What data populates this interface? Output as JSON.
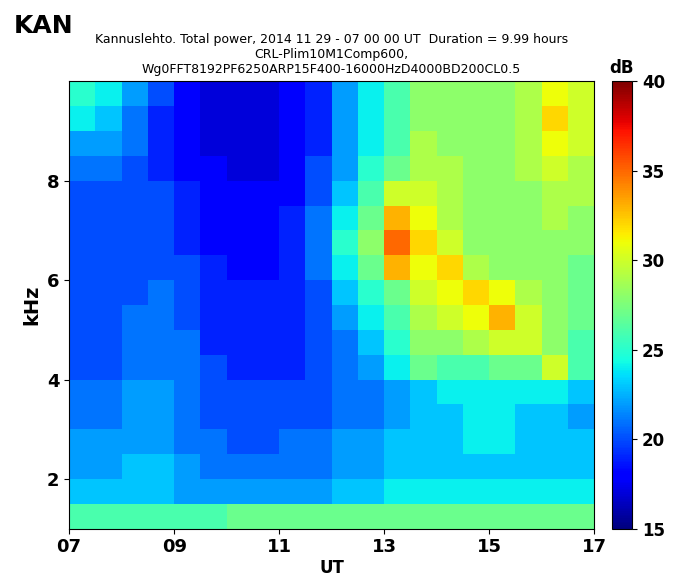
{
  "chart_data": {
    "type": "heatmap",
    "title": "Kannuslehto. Total power, 2014 11 29 - 07 00 00 UT  Duration = 9.99 hours\nCRL-Plim10M1Comp600,\nWg0FFT8192PF6250ARP15F400-16000HzD4000BD200CL0.5",
    "annotations": [
      {
        "text": "KAN"
      }
    ],
    "x_label": "UT",
    "y_label": "kHz",
    "xlim": [
      7,
      17
    ],
    "ylim": [
      1.0,
      10.0
    ],
    "xticks": [
      {
        "value": 7,
        "label": "07"
      },
      {
        "value": 9,
        "label": "09"
      },
      11,
      13,
      15,
      17
    ],
    "yticks": [
      2,
      4,
      6,
      8
    ],
    "x_edges": [
      7.0,
      7.5,
      8.0,
      8.5,
      9.0,
      9.5,
      10.0,
      10.5,
      11.0,
      11.5,
      12.0,
      12.5,
      13.0,
      13.5,
      14.0,
      14.5,
      15.0,
      15.5,
      16.0,
      16.5,
      17.0
    ],
    "y_edges": [
      1.0,
      1.5,
      2.0,
      2.5,
      3.0,
      3.5,
      4.0,
      4.5,
      5.0,
      5.5,
      6.0,
      6.5,
      7.0,
      7.5,
      8.0,
      8.5,
      9.0,
      9.5,
      10.0
    ],
    "cells": [
      [
        26,
        26,
        26,
        26,
        26,
        26,
        27,
        27,
        27,
        27,
        27,
        27,
        27,
        27,
        27,
        27,
        27,
        27,
        27,
        27
      ],
      [
        23,
        23,
        23,
        23,
        22,
        22,
        22,
        22,
        22,
        22,
        23,
        23,
        24,
        24,
        24,
        24,
        24,
        24,
        24,
        24
      ],
      [
        22,
        22,
        23,
        23,
        22,
        21,
        21,
        21,
        21,
        21,
        22,
        22,
        23,
        23,
        23,
        23,
        23,
        23,
        23,
        23
      ],
      [
        22,
        22,
        22,
        22,
        21,
        21,
        20,
        20,
        21,
        21,
        22,
        22,
        23,
        23,
        23,
        24,
        24,
        23,
        23,
        23
      ],
      [
        21,
        21,
        22,
        22,
        21,
        20,
        20,
        20,
        20,
        20,
        21,
        21,
        22,
        23,
        23,
        24,
        24,
        23,
        23,
        22
      ],
      [
        21,
        21,
        22,
        22,
        21,
        20,
        20,
        20,
        20,
        20,
        21,
        21,
        22,
        23,
        24,
        24,
        24,
        24,
        24,
        23
      ],
      [
        20,
        20,
        21,
        21,
        21,
        20,
        19,
        19,
        19,
        20,
        21,
        22,
        24,
        27,
        26,
        26,
        27,
        27,
        30,
        26
      ],
      [
        20,
        20,
        21,
        21,
        21,
        19,
        19,
        19,
        19,
        20,
        21,
        23,
        25,
        28,
        28,
        29,
        30,
        30,
        28,
        26
      ],
      [
        20,
        20,
        21,
        21,
        20,
        19,
        19,
        19,
        19,
        20,
        22,
        24,
        26,
        29,
        30,
        31,
        33,
        30,
        28,
        27
      ],
      [
        20,
        20,
        20,
        21,
        20,
        19,
        19,
        19,
        19,
        20,
        23,
        25,
        27,
        30,
        31,
        32,
        31,
        29,
        28,
        27
      ],
      [
        20,
        20,
        20,
        20,
        20,
        19,
        18,
        18,
        19,
        21,
        24,
        27,
        33,
        31,
        32,
        29,
        28,
        28,
        28,
        27
      ],
      [
        20,
        20,
        20,
        20,
        19,
        18,
        18,
        18,
        19,
        21,
        25,
        28,
        35,
        32,
        30,
        28,
        28,
        28,
        28,
        28
      ],
      [
        20,
        20,
        20,
        20,
        19,
        18,
        18,
        18,
        19,
        21,
        24,
        27,
        33,
        31,
        29,
        28,
        28,
        28,
        29,
        28
      ],
      [
        20,
        20,
        20,
        20,
        19,
        18,
        18,
        18,
        18,
        20,
        23,
        26,
        30,
        30,
        29,
        28,
        28,
        28,
        29,
        29
      ],
      [
        21,
        21,
        20,
        19,
        18,
        18,
        17,
        17,
        18,
        20,
        22,
        25,
        27,
        29,
        29,
        28,
        28,
        29,
        30,
        29
      ],
      [
        22,
        22,
        21,
        19,
        18,
        17,
        17,
        17,
        18,
        19,
        22,
        24,
        26,
        29,
        28,
        28,
        28,
        29,
        31,
        30
      ],
      [
        24,
        23,
        21,
        19,
        18,
        17,
        17,
        17,
        18,
        19,
        22,
        24,
        26,
        28,
        28,
        28,
        28,
        29,
        32,
        30
      ],
      [
        25,
        24,
        22,
        20,
        18,
        17,
        17,
        17,
        18,
        19,
        22,
        24,
        26,
        28,
        28,
        28,
        28,
        29,
        31,
        30
      ]
    ],
    "colorbar": {
      "label": "dB",
      "range": [
        15,
        40
      ],
      "ticks": [
        15,
        20,
        25,
        30,
        35,
        40
      ]
    }
  }
}
